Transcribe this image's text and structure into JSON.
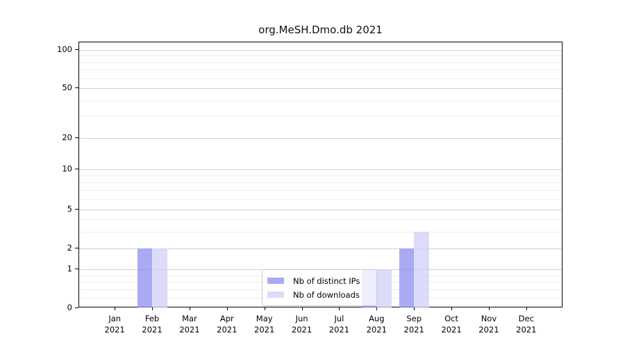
{
  "title": "org.MeSH.Dmo.db 2021",
  "chart_data": {
    "type": "bar",
    "title": "org.MeSH.Dmo.db 2021",
    "categories": [
      "Jan",
      "Feb",
      "Mar",
      "Apr",
      "May",
      "Jun",
      "Jul",
      "Aug",
      "Sep",
      "Oct",
      "Nov",
      "Dec"
    ],
    "x_second_line": "2021",
    "series": [
      {
        "name": "Nb of distinct IPs",
        "color": "#a9a9f4",
        "fill": "rgba(140,140,240,0.75)",
        "values": [
          0,
          2,
          0,
          0,
          0,
          0,
          0,
          1,
          2,
          0,
          0,
          0
        ]
      },
      {
        "name": "Nb of downloads",
        "color": "#dcdcfa",
        "fill": "rgba(208,208,248,0.75)",
        "values": [
          0,
          2,
          0,
          0,
          0,
          0,
          0,
          1,
          3,
          0,
          0,
          0
        ]
      }
    ],
    "yticks": [
      0,
      1,
      2,
      5,
      10,
      20,
      50,
      100
    ],
    "minor_grid_values": [
      0.2,
      0.4,
      0.6,
      0.8,
      3,
      4,
      6,
      7,
      8,
      9,
      30,
      40,
      60,
      70,
      80,
      90
    ],
    "ylim": [
      0,
      115
    ],
    "yscale": "log(1+x)",
    "grid": "horizontal",
    "legend_position": "lower center (inside plot)",
    "xlabel": "",
    "ylabel": ""
  }
}
